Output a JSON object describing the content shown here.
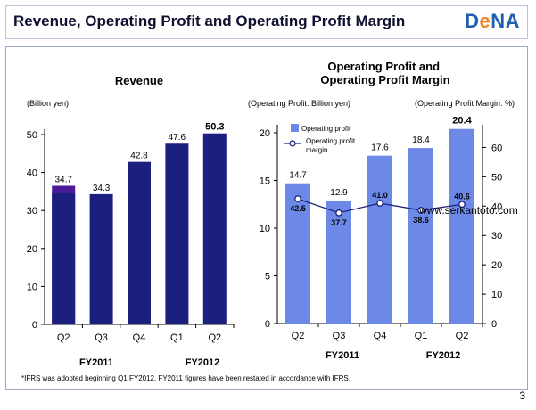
{
  "header": {
    "title": "Revenue, Operating Profit and Operating Profit Margin",
    "logo": "DeNA"
  },
  "chart_data": [
    {
      "type": "bar",
      "title": "Revenue",
      "unit_label": "(Billion yen)",
      "categories": [
        "Q2",
        "Q3",
        "Q4",
        "Q1",
        "Q2"
      ],
      "groups": [
        {
          "label": "FY2011",
          "span": [
            0,
            2
          ]
        },
        {
          "label": "FY2012",
          "span": [
            3,
            4
          ]
        }
      ],
      "values": [
        34.7,
        34.3,
        42.8,
        47.6,
        50.3
      ],
      "value_labels": [
        "34.7",
        "34.3",
        "42.8",
        "47.6",
        "50.3"
      ],
      "restated_value": 36.5,
      "ylim": [
        0,
        50
      ],
      "yticks": [
        "0",
        "10",
        "20",
        "30",
        "40",
        "50"
      ],
      "grid": false
    },
    {
      "type": "bar+line",
      "title": "Operating Profit and Operating Profit Margin",
      "left_unit_label": "(Operating Profit: Billion yen)",
      "right_unit_label": "(Operating Profit Margin: %)",
      "categories": [
        "Q2",
        "Q3",
        "Q4",
        "Q1",
        "Q2"
      ],
      "groups": [
        {
          "label": "FY2011",
          "span": [
            0,
            2
          ]
        },
        {
          "label": "FY2012",
          "span": [
            3,
            4
          ]
        }
      ],
      "series": [
        {
          "name": "Operating profit",
          "kind": "bar",
          "axis": "left",
          "values": [
            14.7,
            12.9,
            17.6,
            18.4,
            20.4
          ],
          "labels": [
            "14.7",
            "12.9",
            "17.6",
            "18.4",
            "20.4"
          ]
        },
        {
          "name": "Operating profit margin",
          "kind": "line",
          "axis": "right",
          "values": [
            42.5,
            37.7,
            41.0,
            38.6,
            40.6
          ],
          "labels": [
            "42.5",
            "37.7",
            "41.0",
            "38.6",
            "40.6"
          ]
        }
      ],
      "legend": {
        "entry1": "Operating profit",
        "entry2_line1": "Operating profit",
        "entry2_line2": "margin",
        "position": "top-left"
      },
      "ylim_left": [
        0,
        20
      ],
      "yticks_left": [
        "0",
        "5",
        "10",
        "15",
        "20"
      ],
      "ylim_right": [
        0,
        65
      ],
      "yticks_right": [
        "0",
        "10",
        "20",
        "30",
        "40",
        "50",
        "60"
      ],
      "grid": false
    }
  ],
  "colors": {
    "revenue_bar": "#1b1f7d",
    "revenue_top": "#4a1a9a",
    "op_bar": "#6c89e8",
    "line": "#1b1f7d",
    "marker_fill": "#ffffff"
  },
  "watermark": "www.serkantoto.com",
  "footnote": "*IFRS was adopted beginning Q1 FY2012. FY2011 figures have been restated in accordance with IFRS.",
  "page_number": "3"
}
